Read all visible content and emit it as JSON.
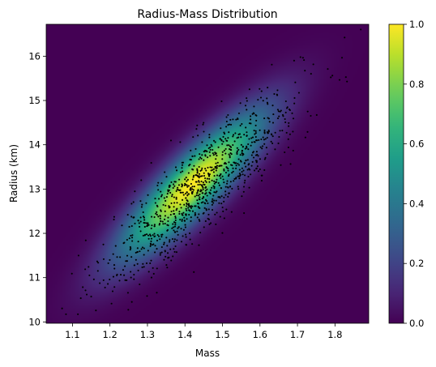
{
  "chart_data": {
    "type": "heatmap",
    "title": "Radius-Mass Distribution",
    "xlabel": "Mass",
    "ylabel": "Radius (km)",
    "xlim": [
      1.03,
      1.89
    ],
    "ylim": [
      9.97,
      16.72
    ],
    "x_ticks": [
      1.1,
      1.2,
      1.3,
      1.4,
      1.5,
      1.6,
      1.7,
      1.8
    ],
    "x_tick_labels": [
      "1.1",
      "1.2",
      "1.3",
      "1.4",
      "1.5",
      "1.6",
      "1.7",
      "1.8"
    ],
    "y_ticks": [
      10,
      11,
      12,
      13,
      14,
      15,
      16
    ],
    "y_tick_labels": [
      "10",
      "11",
      "12",
      "13",
      "14",
      "15",
      "16"
    ],
    "colormap": "viridis",
    "colorbar": {
      "range": [
        0,
        1
      ],
      "ticks": [
        0,
        0.2,
        0.4,
        0.6,
        0.8,
        1.0
      ],
      "tick_labels": [
        "0.0",
        "0.2",
        "0.4",
        "0.6",
        "0.8",
        "1.0"
      ]
    },
    "density": {
      "peak": [
        1.42,
        13.1
      ],
      "mass_sd": 0.13,
      "radius_sd": 1.1,
      "correlation": 0.87,
      "peak_value": 1.0
    },
    "samples": {
      "count": 1000,
      "mean": [
        1.45,
        13.1
      ],
      "mass_sd": 0.13,
      "radius_sd": 1.1,
      "correlation": 0.87,
      "color": "#000000"
    },
    "grid": false
  }
}
